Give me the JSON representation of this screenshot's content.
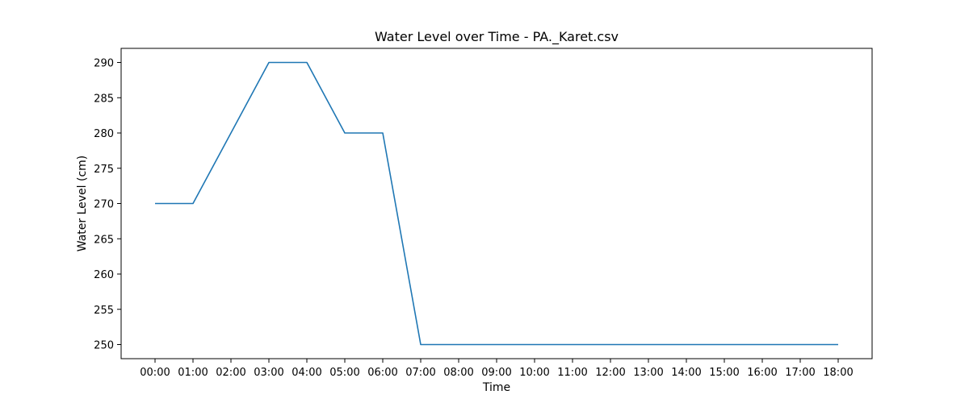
{
  "chart_data": {
    "type": "line",
    "title": "Water Level over Time - PA._Karet.csv",
    "xlabel": "Time",
    "ylabel": "Water Level (cm)",
    "categories": [
      "00:00",
      "01:00",
      "02:00",
      "03:00",
      "04:00",
      "05:00",
      "06:00",
      "07:00",
      "08:00",
      "09:00",
      "10:00",
      "11:00",
      "12:00",
      "13:00",
      "14:00",
      "15:00",
      "16:00",
      "17:00",
      "18:00"
    ],
    "series": [
      {
        "values": [
          270,
          270,
          280,
          290,
          290,
          280,
          280,
          250,
          250,
          250,
          250,
          250,
          250,
          250,
          250,
          250,
          250,
          250,
          250
        ],
        "color": "#1f77b4"
      }
    ],
    "yticks": [
      250,
      255,
      260,
      265,
      270,
      275,
      280,
      285,
      290
    ],
    "ylim": [
      248,
      292
    ],
    "grid": false,
    "legend": "none"
  }
}
